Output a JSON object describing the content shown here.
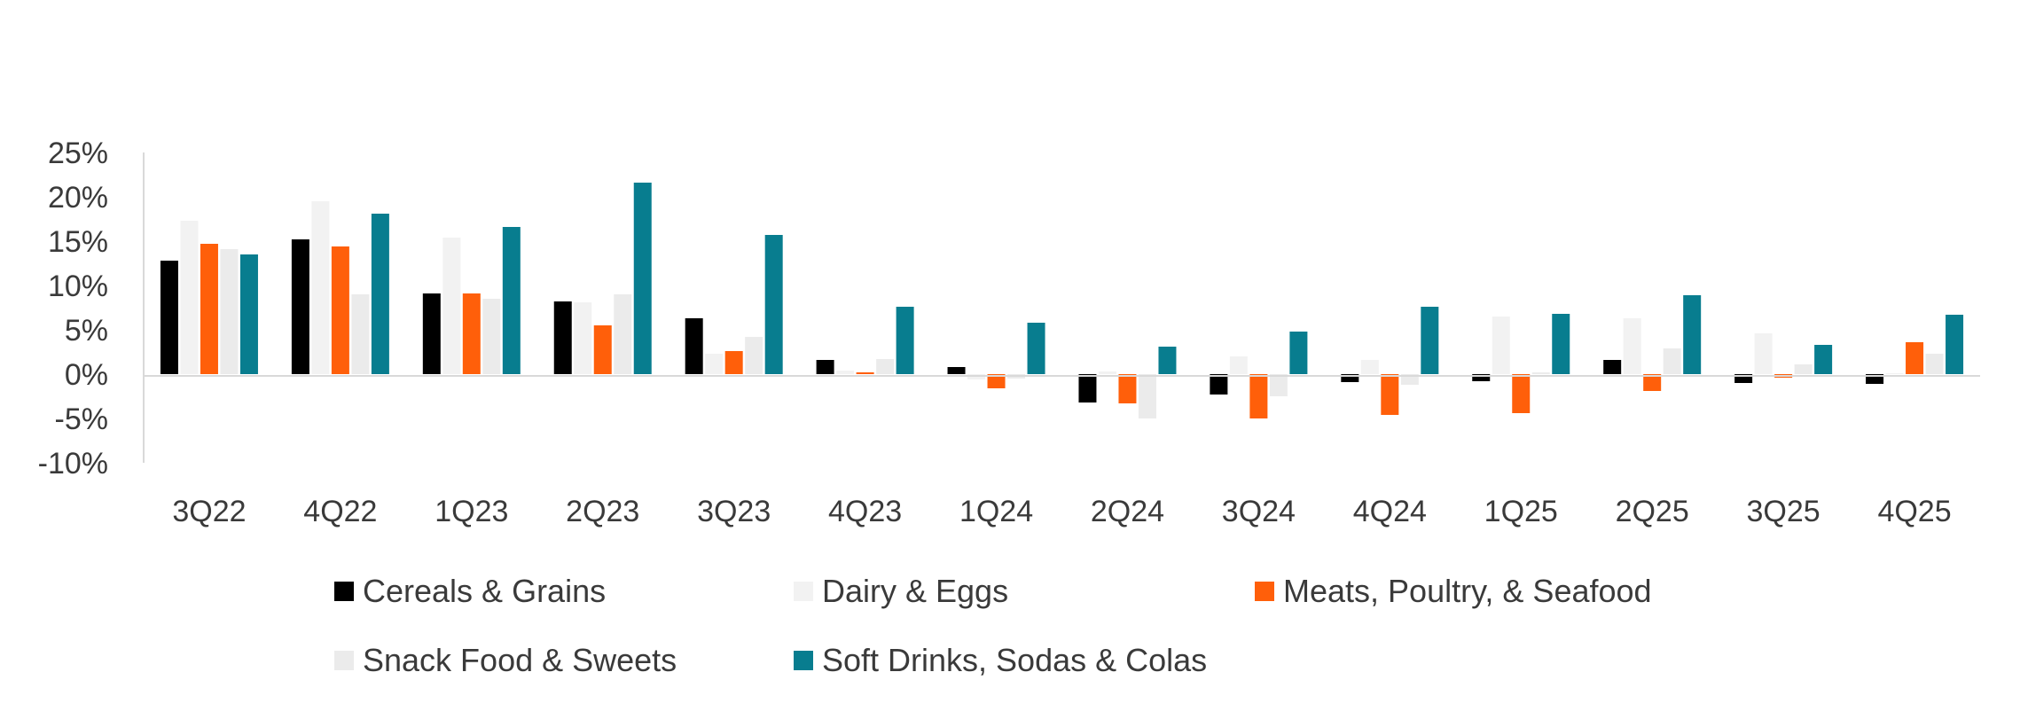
{
  "chart_data": {
    "type": "bar",
    "title": "",
    "xlabel": "",
    "ylabel": "",
    "ylim": [
      -10,
      25
    ],
    "ytick_values": [
      -10,
      -5,
      0,
      5,
      10,
      15,
      20,
      25
    ],
    "ytick_labels": [
      "-10%",
      "-5%",
      "0%",
      "5%",
      "10%",
      "15%",
      "20%",
      "25%"
    ],
    "grid": false,
    "legend_position": "bottom",
    "categories": [
      "3Q22",
      "4Q22",
      "1Q23",
      "2Q23",
      "3Q23",
      "4Q23",
      "1Q24",
      "2Q24",
      "3Q24",
      "4Q24",
      "1Q25",
      "2Q25",
      "3Q25",
      "4Q25"
    ],
    "series": [
      {
        "name": "Cereals & Grains",
        "color": "#000000",
        "values": [
          12.8,
          15.2,
          9.1,
          8.2,
          6.3,
          1.6,
          0.8,
          -3.2,
          -2.3,
          -0.9,
          -0.8,
          1.6,
          -1.0,
          -1.1
        ]
      },
      {
        "name": "Dairy & Eggs",
        "color": "#f2f2f2",
        "values": [
          17.3,
          19.5,
          15.4,
          8.1,
          2.3,
          0.4,
          -0.6,
          0.3,
          2.0,
          1.6,
          6.5,
          6.3,
          4.6,
          0.1
        ]
      },
      {
        "name": "Meats, Poultry, & Seafood",
        "color": "#ff5f0a",
        "values": [
          14.7,
          14.4,
          9.1,
          5.5,
          2.6,
          0.2,
          -1.6,
          -3.3,
          -5.0,
          -4.6,
          -4.4,
          -1.9,
          -0.4,
          3.6
        ]
      },
      {
        "name": "Snack Food & Sweets",
        "color": "#ebebeb",
        "values": [
          14.1,
          9.0,
          8.5,
          9.0,
          4.2,
          1.7,
          -0.5,
          -5.0,
          -2.5,
          -1.2,
          0.2,
          2.9,
          1.1,
          2.3
        ]
      },
      {
        "name": "Soft Drinks, Sodas & Colas",
        "color": "#087d8f",
        "values": [
          13.5,
          18.1,
          16.6,
          21.6,
          15.7,
          7.6,
          5.8,
          3.1,
          4.8,
          7.6,
          6.8,
          8.9,
          3.3,
          6.7
        ]
      }
    ]
  }
}
